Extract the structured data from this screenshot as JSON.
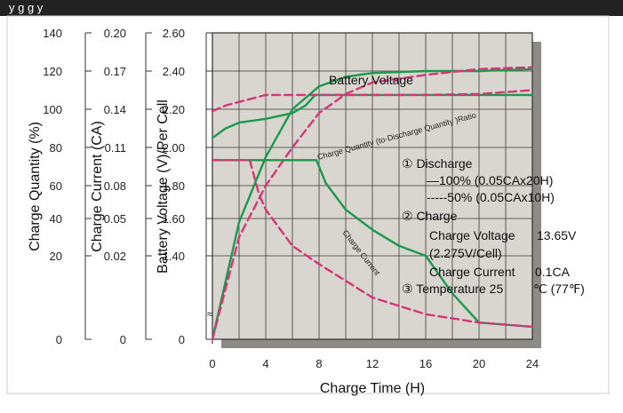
{
  "header": {
    "title_fragment": "y    g        g                        y"
  },
  "chart_data": {
    "type": "line",
    "x_axis": {
      "label": "Charge Time (H)",
      "ticks": [
        0,
        4,
        8,
        12,
        16,
        20,
        24
      ],
      "range": [
        0,
        24
      ]
    },
    "left_axes": [
      {
        "label": "Charge Quantity (%)",
        "ticks": [
          "140",
          "120",
          "100",
          "80",
          "60",
          "40",
          "20",
          "0"
        ]
      },
      {
        "label": "Charge Current (CA)",
        "ticks": [
          "0.20",
          "0.17",
          "0.14",
          "0.11",
          "0.08",
          "0.05",
          "0.02",
          "0"
        ]
      },
      {
        "label": "Battery Voltage (V)/Per Cell",
        "ticks": [
          "2.60",
          "2.40",
          "2.20",
          "2.00",
          "1.80",
          "1.60",
          "1.40",
          "0"
        ]
      }
    ],
    "grid": true,
    "series": [
      {
        "name": "Battery Voltage",
        "unit": "V/cell",
        "color": "#1a9a4a",
        "style": "solid",
        "x": [
          0,
          1,
          2,
          4,
          6,
          7,
          7.7,
          8,
          12,
          16,
          20,
          24
        ],
        "y": [
          2.05,
          2.1,
          2.13,
          2.15,
          2.18,
          2.22,
          2.275,
          2.275,
          2.275,
          2.275,
          2.275,
          2.275
        ]
      },
      {
        "name": "Battery Voltage (50%)",
        "unit": "V/cell",
        "color": "#d6357a",
        "style": "dashed",
        "x": [
          0,
          1,
          4,
          8,
          12,
          16,
          20,
          24
        ],
        "y": [
          2.19,
          2.22,
          2.275,
          2.275,
          2.275,
          2.275,
          2.28,
          2.3
        ]
      },
      {
        "name": "Charge Quantity (to-Discharge Quantity)Ratio",
        "unit": "%",
        "color": "#1a9a4a",
        "style": "solid",
        "x": [
          0,
          2,
          4,
          6,
          8,
          10,
          12,
          16,
          20,
          24
        ],
        "y": [
          0,
          38,
          75,
          100,
          112,
          117,
          119,
          120,
          120,
          121
        ]
      },
      {
        "name": "Charge Quantity (50%)",
        "unit": "%",
        "color": "#d6357a",
        "style": "dashed",
        "x": [
          0,
          2,
          4,
          6,
          8,
          10,
          12,
          16,
          20,
          24
        ],
        "y": [
          0,
          30,
          60,
          80,
          98,
          108,
          114,
          118,
          121,
          122
        ]
      },
      {
        "name": "Charge Current",
        "unit": "CA",
        "color": "#1a9a4a",
        "style": "solid",
        "x": [
          0,
          7.8,
          8.5,
          10,
          12,
          14,
          16,
          18,
          20,
          24
        ],
        "y": [
          0.1,
          0.1,
          0.082,
          0.058,
          0.041,
          0.028,
          0.02,
          0.011,
          0.004,
          0.003
        ]
      },
      {
        "name": "Charge Current (50%)",
        "unit": "CA",
        "color": "#d6357a",
        "style": "dashed",
        "x": [
          0,
          2.8,
          3.5,
          4,
          6,
          8,
          12,
          16,
          20,
          24
        ],
        "y": [
          0.1,
          0.1,
          0.072,
          0.058,
          0.028,
          0.018,
          0.01,
          0.006,
          0.004,
          0.003
        ]
      }
    ],
    "annotations": {
      "battery_voltage": "Battery Voltage",
      "charge_ratio": "Charge Quantity (to-Discharge Quantity )Ratio",
      "charge_current": "Charge Current",
      "legend_lines": [
        "① Discharge",
        "—100% (0.05CAx20H)",
        "-----50% (0.05CAx10H)",
        "② Charge",
        "Charge Voltage",
        "13.65V",
        "(2.275V/Cell)",
        "Charge Current",
        "0.1CA",
        "③ Temperature 25",
        "℃ (77℉)"
      ],
      "axis_break": "≈"
    },
    "colors": {
      "plot_bg": "#d9d5cf",
      "shadow": "#8e8a85",
      "grid": "#3a3a3a",
      "green": "#1a9a4a",
      "pink": "#d6357a"
    }
  }
}
